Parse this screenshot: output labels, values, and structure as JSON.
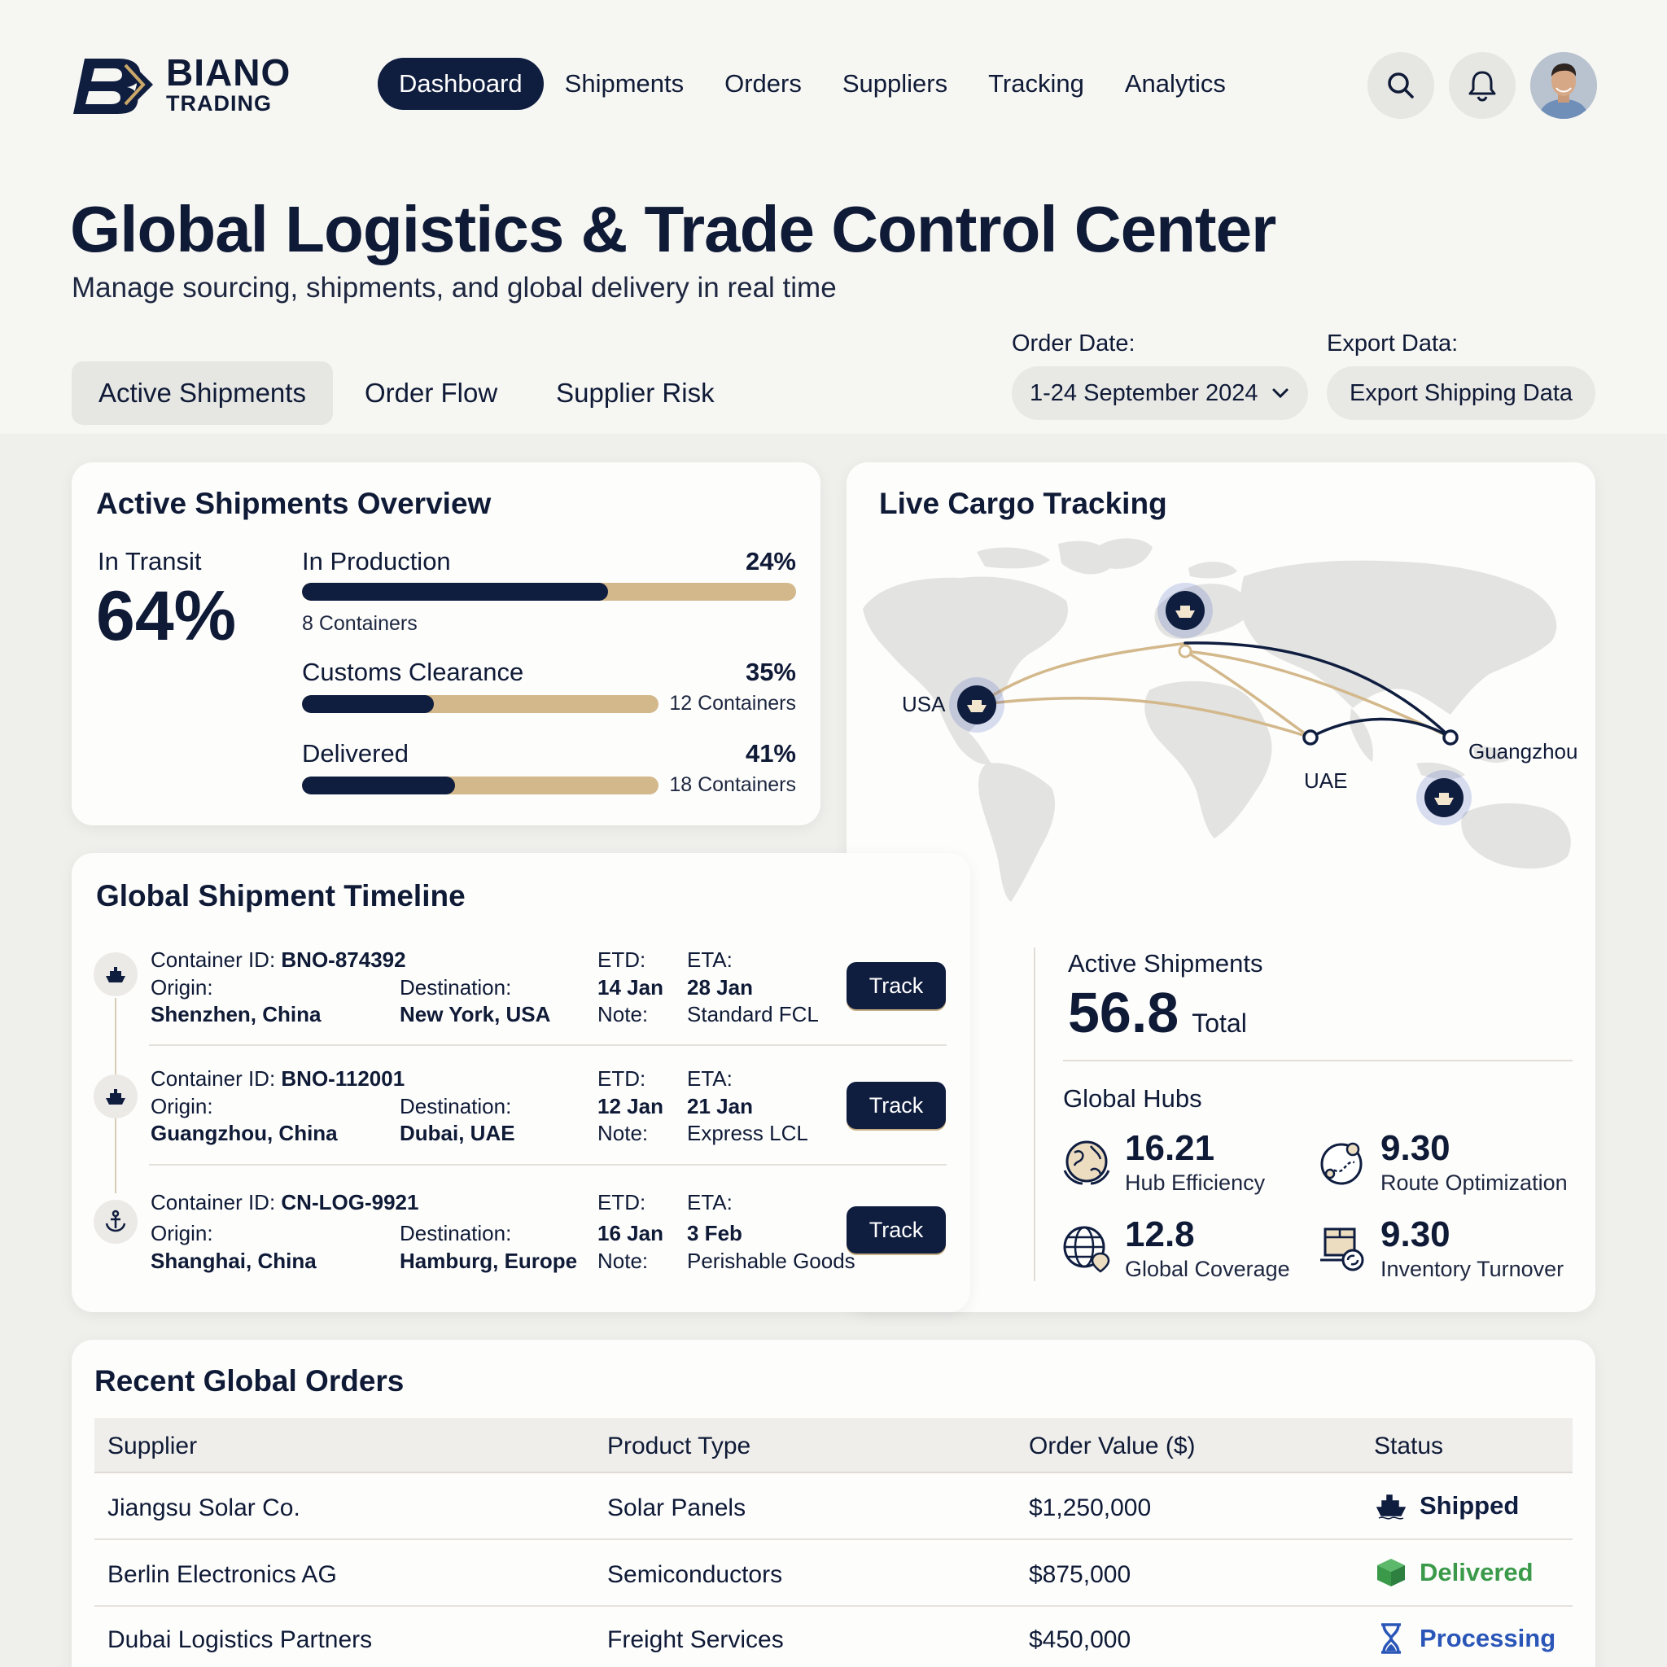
{
  "brand": {
    "name": "BIANO",
    "tagline": "TRADING"
  },
  "nav": {
    "items": [
      "Dashboard",
      "Shipments",
      "Orders",
      "Suppliers",
      "Tracking",
      "Analytics"
    ],
    "active": "Dashboard"
  },
  "header": {
    "title": "Global Logistics & Trade Control Center",
    "subtitle": "Manage sourcing, shipments, and global delivery in real time"
  },
  "tabs": [
    "Active Shipments",
    "Order Flow",
    "Supplier Risk"
  ],
  "filters": {
    "order_date_label": "Order Date:",
    "order_date_value": "1-24 September 2024",
    "export_label": "Export Data:",
    "export_button": "Export Shipping Data"
  },
  "overview": {
    "title": "Active Shipments Overview",
    "in_transit_label": "In Transit",
    "in_transit_value": "64%",
    "rows": [
      {
        "label": "In Production",
        "pct": "24%",
        "containers": "8 Containers",
        "fill": 0.62
      },
      {
        "label": "Customs Clearance",
        "pct": "35%",
        "containers": "12 Containers",
        "fill": 0.37
      },
      {
        "label": "Delivered",
        "pct": "41%",
        "containers": "18 Containers",
        "fill": 0.43
      }
    ]
  },
  "timeline": {
    "title": "Global Shipment Timeline",
    "labels": {
      "container": "Container ID: ",
      "origin": "Origin:",
      "destination": "Destination:",
      "etd": "ETD:",
      "eta": "ETA:",
      "note": "Note:",
      "track": "Track"
    },
    "items": [
      {
        "id": "BNO-874392",
        "origin": "Shenzhen, China",
        "destination": "New York, USA",
        "etd": "14 Jan",
        "eta": "28 Jan",
        "note": "Standard FCL"
      },
      {
        "id": "BNO-112001",
        "origin": "Guangzhou, China",
        "destination": "Dubai, UAE",
        "etd": "12 Jan",
        "eta": "21 Jan",
        "note": "Express LCL"
      },
      {
        "id": "CN-LOG-9921",
        "origin": "Shanghai, China",
        "destination": "Hamburg, Europe",
        "etd": "16 Jan",
        "eta": "3 Feb",
        "note": "Perishable Goods"
      }
    ]
  },
  "tracking": {
    "title": "Live Cargo Tracking",
    "locations": [
      "USA",
      "UAE",
      "Guangzhou"
    ],
    "active_label": "Active Shipments",
    "active_value": "56.8",
    "active_unit": "Total",
    "hubs_title": "Global Hubs",
    "hubs": [
      {
        "value": "16.21",
        "label": "Hub Efficiency",
        "icon": "globe-hands-icon"
      },
      {
        "value": "9.30",
        "label": "Route Optimization",
        "icon": "route-globe-icon"
      },
      {
        "value": "12.8",
        "label": "Global Coverage",
        "icon": "globe-pin-icon"
      },
      {
        "value": "9.30",
        "label": "Inventory Turnover",
        "icon": "package-cycle-icon"
      }
    ]
  },
  "orders": {
    "title": "Recent Global Orders",
    "columns": [
      "Supplier",
      "Product Type",
      "Order Value ($)",
      "Status"
    ],
    "rows": [
      {
        "supplier": "Jiangsu Solar Co.",
        "product": "Solar Panels",
        "value": "$1,250,000",
        "status": "Shipped",
        "status_color": "#0f1d3f",
        "icon": "ship-icon"
      },
      {
        "supplier": "Berlin Electronics AG",
        "product": "Semiconductors",
        "value": "$875,000",
        "status": "Delivered",
        "status_color": "#3a9a4a",
        "icon": "box-icon"
      },
      {
        "supplier": "Dubai Logistics Partners",
        "product": "Freight Services",
        "value": "$450,000",
        "status": "Processing",
        "status_color": "#2a56b8",
        "icon": "hourglass-icon"
      }
    ]
  },
  "colors": {
    "navy": "#0f1d3f",
    "gold": "#d3b88b",
    "green": "#3a9a4a",
    "blue": "#2a56b8"
  }
}
